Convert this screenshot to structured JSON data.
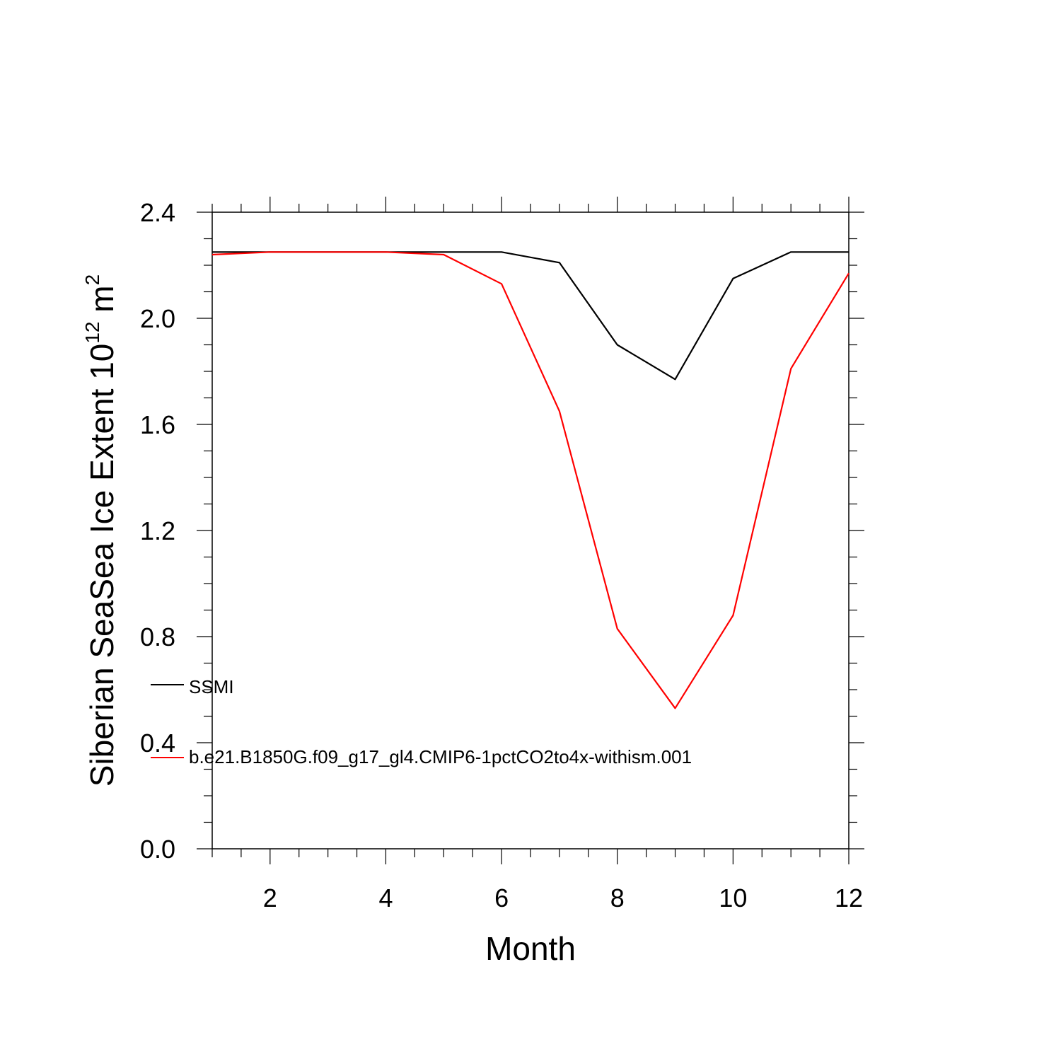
{
  "chart_data": {
    "type": "line",
    "xlabel": "Month",
    "ylabel": "Siberian SeaSea Ice Extent 10",
    "ylabel_exp": "12",
    "ylabel_unit": "m",
    "ylabel_unit_exp": "2",
    "xlim": [
      1,
      12
    ],
    "ylim": [
      0,
      2.4
    ],
    "x_ticks": [
      2,
      4,
      6,
      8,
      10,
      12
    ],
    "y_ticks": [
      "0.0",
      "0.4",
      "0.8",
      "1.2",
      "1.6",
      "2.0",
      "2.4"
    ],
    "grid": false,
    "legend_position": "left",
    "x": [
      1,
      2,
      3,
      4,
      5,
      6,
      7,
      8,
      9,
      10,
      11,
      12
    ],
    "series": [
      {
        "name": "SSMI",
        "color": "#000000",
        "values": [
          2.25,
          2.25,
          2.25,
          2.25,
          2.25,
          2.25,
          2.21,
          1.9,
          1.77,
          2.15,
          2.25,
          2.25
        ]
      },
      {
        "name": "b.e21.B1850G.f09_g17_gl4.CMIP6-1pctCO2to4x-withism.001",
        "color": "#ff0000",
        "values": [
          2.24,
          2.25,
          2.25,
          2.25,
          2.24,
          2.13,
          1.65,
          0.83,
          0.53,
          0.88,
          1.81,
          2.17
        ]
      }
    ]
  }
}
